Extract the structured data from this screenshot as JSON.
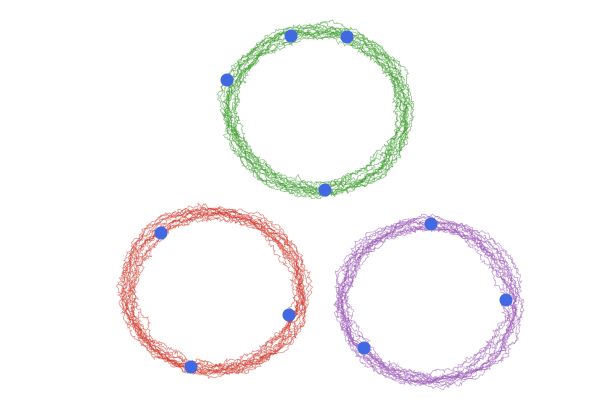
{
  "chart_data": {
    "type": "scatter",
    "xlim": [
      0,
      6
    ],
    "ylim": [
      0,
      4
    ],
    "dot_color": "#4169e1",
    "series": [
      {
        "color": "#3a9a2a",
        "x": [
          2.91,
          3.47,
          2.27,
          3.25
        ],
        "y": [
          3.64,
          3.63,
          3.2,
          2.1
        ]
      },
      {
        "color": "#d13b2e",
        "x": [
          1.61,
          2.89,
          1.91
        ],
        "y": [
          1.67,
          0.85,
          0.33
        ]
      },
      {
        "color": "#9b59b6",
        "x": [
          4.31,
          5.06,
          3.64
        ],
        "y": [
          1.76,
          1.0,
          0.52
        ]
      }
    ]
  }
}
